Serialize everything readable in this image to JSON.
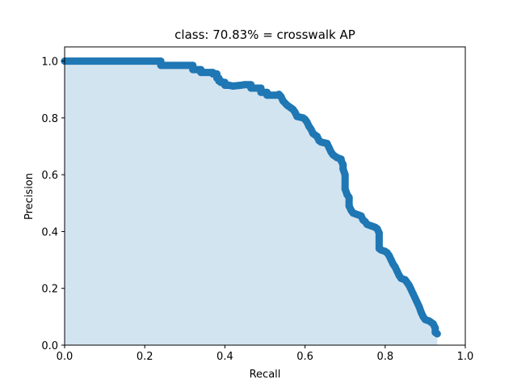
{
  "chart_data": {
    "type": "area",
    "title": "class: 70.83% = crosswalk AP",
    "xlabel": "Recall",
    "ylabel": "Precision",
    "xlim": [
      0.0,
      1.0
    ],
    "ylim": [
      0.0,
      1.05
    ],
    "xticks": [
      "0.0",
      "0.2",
      "0.4",
      "0.6",
      "0.8",
      "1.0"
    ],
    "yticks": [
      "0.0",
      "0.2",
      "0.4",
      "0.6",
      "0.8",
      "1.0"
    ],
    "grid": false,
    "colors": {
      "line": "#1f77b4",
      "fill": "#1f77b4"
    },
    "series": [
      {
        "points": [
          [
            0.0,
            1.0
          ],
          [
            0.24,
            1.0
          ],
          [
            0.24,
            0.985
          ],
          [
            0.32,
            0.985
          ],
          [
            0.32,
            0.97
          ],
          [
            0.34,
            0.97
          ],
          [
            0.34,
            0.96
          ],
          [
            0.37,
            0.96
          ],
          [
            0.37,
            0.955
          ],
          [
            0.38,
            0.955
          ],
          [
            0.38,
            0.94
          ],
          [
            0.385,
            0.94
          ],
          [
            0.385,
            0.93
          ],
          [
            0.39,
            0.93
          ],
          [
            0.39,
            0.925
          ],
          [
            0.4,
            0.925
          ],
          [
            0.4,
            0.915
          ],
          [
            0.41,
            0.915
          ],
          [
            0.42,
            0.912
          ],
          [
            0.44,
            0.915
          ],
          [
            0.45,
            0.917
          ],
          [
            0.465,
            0.917
          ],
          [
            0.465,
            0.905
          ],
          [
            0.49,
            0.905
          ],
          [
            0.49,
            0.89
          ],
          [
            0.505,
            0.89
          ],
          [
            0.505,
            0.88
          ],
          [
            0.53,
            0.88
          ],
          [
            0.535,
            0.883
          ],
          [
            0.54,
            0.875
          ],
          [
            0.545,
            0.86
          ],
          [
            0.555,
            0.845
          ],
          [
            0.565,
            0.835
          ],
          [
            0.57,
            0.83
          ],
          [
            0.575,
            0.82
          ],
          [
            0.58,
            0.805
          ],
          [
            0.595,
            0.8
          ],
          [
            0.6,
            0.795
          ],
          [
            0.605,
            0.785
          ],
          [
            0.61,
            0.77
          ],
          [
            0.615,
            0.76
          ],
          [
            0.62,
            0.745
          ],
          [
            0.63,
            0.735
          ],
          [
            0.635,
            0.72
          ],
          [
            0.64,
            0.715
          ],
          [
            0.655,
            0.71
          ],
          [
            0.66,
            0.695
          ],
          [
            0.665,
            0.68
          ],
          [
            0.67,
            0.67
          ],
          [
            0.68,
            0.66
          ],
          [
            0.69,
            0.655
          ],
          [
            0.69,
            0.65
          ],
          [
            0.695,
            0.635
          ],
          [
            0.695,
            0.62
          ],
          [
            0.7,
            0.6
          ],
          [
            0.7,
            0.55
          ],
          [
            0.705,
            0.53
          ],
          [
            0.71,
            0.52
          ],
          [
            0.71,
            0.49
          ],
          [
            0.715,
            0.475
          ],
          [
            0.72,
            0.465
          ],
          [
            0.73,
            0.46
          ],
          [
            0.74,
            0.455
          ],
          [
            0.745,
            0.44
          ],
          [
            0.75,
            0.435
          ],
          [
            0.755,
            0.425
          ],
          [
            0.765,
            0.42
          ],
          [
            0.775,
            0.415
          ],
          [
            0.78,
            0.41
          ],
          [
            0.785,
            0.395
          ],
          [
            0.785,
            0.34
          ],
          [
            0.79,
            0.335
          ],
          [
            0.8,
            0.33
          ],
          [
            0.805,
            0.325
          ],
          [
            0.81,
            0.315
          ],
          [
            0.815,
            0.3
          ],
          [
            0.82,
            0.285
          ],
          [
            0.825,
            0.275
          ],
          [
            0.83,
            0.26
          ],
          [
            0.835,
            0.245
          ],
          [
            0.84,
            0.235
          ],
          [
            0.85,
            0.23
          ],
          [
            0.855,
            0.22
          ],
          [
            0.86,
            0.21
          ],
          [
            0.865,
            0.195
          ],
          [
            0.87,
            0.18
          ],
          [
            0.875,
            0.165
          ],
          [
            0.88,
            0.15
          ],
          [
            0.885,
            0.135
          ],
          [
            0.89,
            0.115
          ],
          [
            0.895,
            0.1
          ],
          [
            0.9,
            0.09
          ],
          [
            0.91,
            0.085
          ],
          [
            0.915,
            0.08
          ],
          [
            0.92,
            0.075
          ],
          [
            0.925,
            0.06
          ],
          [
            0.925,
            0.045
          ],
          [
            0.93,
            0.04
          ]
        ]
      }
    ]
  }
}
